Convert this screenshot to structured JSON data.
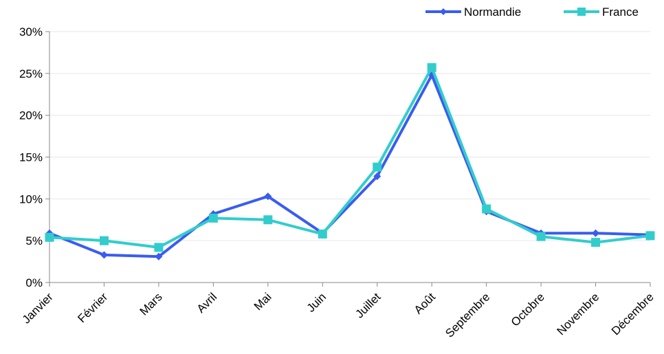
{
  "chart_data": {
    "type": "line",
    "categories": [
      "Janvier",
      "Février",
      "Mars",
      "Avril",
      "Mai",
      "Juin",
      "Juillet",
      "Août",
      "Septembre",
      "Octobre",
      "Novembre",
      "Décembre"
    ],
    "series": [
      {
        "name": "Normandie",
        "color": "#3a5cf0",
        "marker": "diamond",
        "values": [
          5.9,
          3.3,
          3.1,
          8.2,
          10.3,
          5.9,
          12.7,
          24.8,
          8.5,
          5.9,
          5.9,
          5.7
        ]
      },
      {
        "name": "France",
        "color": "#33cccc",
        "marker": "square",
        "values": [
          5.4,
          5.0,
          4.2,
          7.7,
          7.5,
          5.8,
          13.8,
          25.7,
          8.8,
          5.5,
          4.8,
          5.6
        ]
      }
    ],
    "y_ticks": [
      "0%",
      "5%",
      "10%",
      "15%",
      "20%",
      "25%",
      "30%"
    ],
    "ylim": [
      0,
      30
    ],
    "y_unit": "%",
    "grid": true,
    "legend_position": "top-right"
  }
}
